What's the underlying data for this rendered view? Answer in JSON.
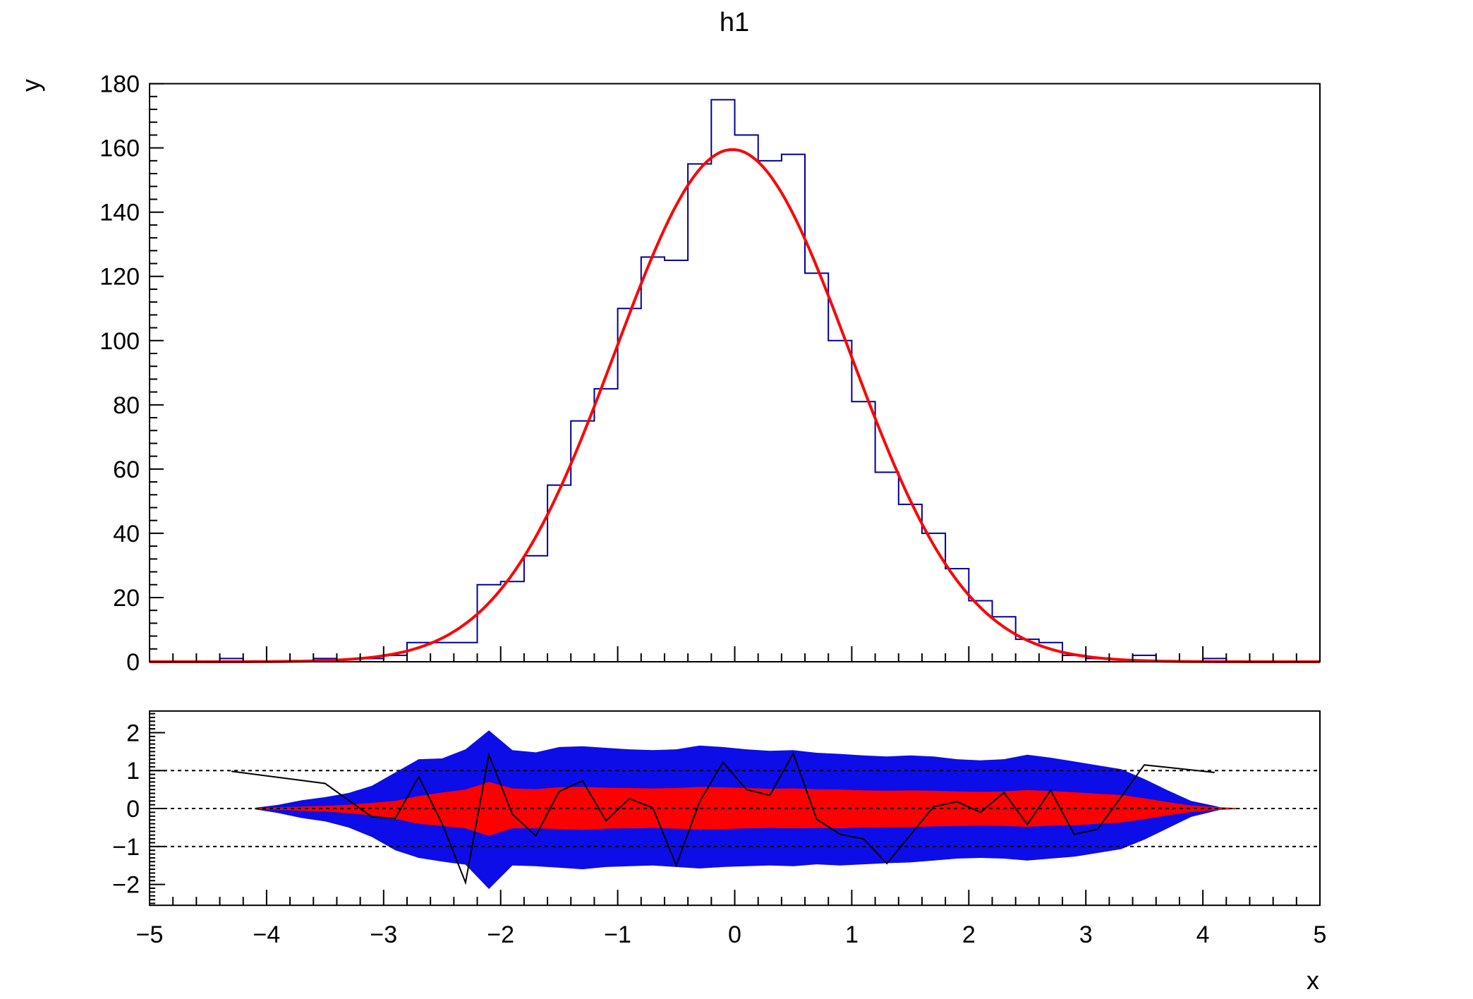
{
  "title": "h1",
  "colors": {
    "frame": "#000000",
    "histogram_line": "#000099",
    "fit_curve": "#ff0000",
    "band_2sigma": "#0d0de8",
    "band_1sigma": "#ff0000",
    "pull_line": "#000000",
    "reference_line": "#000000",
    "background": "#ffffff"
  },
  "axes": {
    "x": {
      "title": "x",
      "min": -5,
      "max": 5,
      "major_step": 1,
      "minor_step": 0.2,
      "tick_values": [
        -5,
        -4,
        -3,
        -2,
        -1,
        0,
        1,
        2,
        3,
        4,
        5
      ],
      "tick_labels": [
        "−5",
        "−4",
        "−3",
        "−2",
        "−1",
        "0",
        "1",
        "2",
        "3",
        "4",
        "5"
      ]
    },
    "y_top": {
      "title": "y",
      "min": 0,
      "max": 180,
      "major_step": 20,
      "minor_step": 4,
      "tick_values": [
        0,
        20,
        40,
        60,
        80,
        100,
        120,
        140,
        160,
        180
      ],
      "tick_labels": [
        "0",
        "20",
        "40",
        "60",
        "80",
        "100",
        "120",
        "140",
        "160",
        "180"
      ]
    },
    "y_bottom": {
      "min": -2.55,
      "max": 2.57,
      "major_step": 1,
      "minor_step": 0.1,
      "tick_values": [
        -2,
        -1,
        0,
        1,
        2
      ],
      "tick_labels": [
        "−2",
        "−1",
        "0",
        "1",
        "2"
      ]
    }
  },
  "chart_data": [
    {
      "type": "bar",
      "subtype": "step-histogram-with-fit",
      "title": "h1",
      "xlabel": "x",
      "ylabel": "y",
      "xlim": [
        -5,
        5
      ],
      "ylim": [
        0,
        180
      ],
      "grid": false,
      "legend": "none",
      "n_bins": 50,
      "bin_start": -5,
      "bin_width": 0.2,
      "values": [
        0,
        0,
        0,
        1,
        0,
        0,
        0,
        1,
        0,
        1,
        2,
        6,
        6,
        6,
        24,
        25,
        33,
        55,
        75,
        85,
        110,
        126,
        125,
        155,
        175,
        164,
        156,
        158,
        121,
        100,
        81,
        59,
        49,
        40,
        29,
        19,
        14,
        7,
        6,
        2,
        1,
        0,
        2,
        0,
        0,
        1,
        0,
        0,
        0,
        0
      ],
      "fit": {
        "shape": "gaussian",
        "amplitude": 159.5,
        "mean": -0.02,
        "sigma": 1.0
      }
    },
    {
      "type": "area",
      "subtype": "fit-residual-pulls-with-confidence-bands",
      "ylim": [
        -2.55,
        2.57
      ],
      "reference_lines": [
        1,
        0,
        -1
      ],
      "pulls": {
        "x": [
          -4.3,
          -3.5,
          -3.1,
          -2.9,
          -2.7,
          -2.5,
          -2.3,
          -2.1,
          -1.9,
          -1.7,
          -1.5,
          -1.3,
          -1.1,
          -0.9,
          -0.7,
          -0.5,
          -0.3,
          -0.1,
          0.1,
          0.3,
          0.5,
          0.7,
          0.9,
          1.1,
          1.3,
          1.5,
          1.7,
          1.9,
          2.1,
          2.3,
          2.5,
          2.7,
          2.9,
          3.1,
          3.5,
          4.1
        ],
        "y": [
          0.98,
          0.66,
          -0.22,
          -0.26,
          0.84,
          -0.4,
          -1.95,
          1.42,
          -0.15,
          -0.72,
          0.45,
          0.73,
          -0.32,
          0.26,
          0.02,
          -1.5,
          0.18,
          1.22,
          0.5,
          0.35,
          1.45,
          -0.28,
          -0.68,
          -0.8,
          -1.45,
          -0.7,
          0.05,
          0.18,
          -0.1,
          0.42,
          -0.42,
          0.48,
          -0.68,
          -0.55,
          1.15,
          0.95
        ]
      },
      "band_2sigma": {
        "x": [
          -4.1,
          -3.9,
          -3.7,
          -3.5,
          -3.3,
          -3.1,
          -2.9,
          -2.7,
          -2.5,
          -2.3,
          -2.1,
          -1.9,
          -1.7,
          -1.5,
          -1.3,
          -1.1,
          -0.9,
          -0.7,
          -0.5,
          -0.3,
          -0.1,
          0.1,
          0.3,
          0.5,
          0.7,
          0.9,
          1.1,
          1.3,
          1.5,
          1.7,
          1.9,
          2.1,
          2.3,
          2.5,
          2.7,
          2.9,
          3.1,
          3.3,
          3.5,
          3.7,
          3.9,
          4.1,
          4.18
        ],
        "upper": [
          0.02,
          0.1,
          0.22,
          0.3,
          0.41,
          0.6,
          0.95,
          1.3,
          1.32,
          1.56,
          2.06,
          1.54,
          1.48,
          1.62,
          1.64,
          1.6,
          1.56,
          1.54,
          1.56,
          1.66,
          1.62,
          1.56,
          1.52,
          1.54,
          1.47,
          1.44,
          1.4,
          1.37,
          1.4,
          1.37,
          1.3,
          1.27,
          1.3,
          1.42,
          1.34,
          1.24,
          1.14,
          1.04,
          0.78,
          0.48,
          0.2,
          0.07,
          0.01
        ],
        "lower": [
          -0.02,
          -0.12,
          -0.25,
          -0.34,
          -0.5,
          -0.75,
          -1.1,
          -1.3,
          -1.4,
          -1.48,
          -2.12,
          -1.5,
          -1.52,
          -1.56,
          -1.6,
          -1.54,
          -1.52,
          -1.5,
          -1.54,
          -1.58,
          -1.54,
          -1.52,
          -1.5,
          -1.52,
          -1.47,
          -1.5,
          -1.47,
          -1.44,
          -1.42,
          -1.37,
          -1.32,
          -1.3,
          -1.32,
          -1.37,
          -1.32,
          -1.27,
          -1.17,
          -1.07,
          -0.82,
          -0.52,
          -0.22,
          -0.07,
          -0.01
        ]
      },
      "band_1sigma": {
        "x": [
          -4.1,
          -3.9,
          -3.7,
          -3.5,
          -3.3,
          -3.1,
          -2.9,
          -2.7,
          -2.5,
          -2.3,
          -2.1,
          -1.9,
          -1.7,
          -1.5,
          -1.3,
          -1.1,
          -0.9,
          -0.7,
          -0.5,
          -0.3,
          -0.1,
          0.1,
          0.3,
          0.5,
          0.7,
          0.9,
          1.1,
          1.3,
          1.5,
          1.7,
          1.9,
          2.1,
          2.3,
          2.5,
          2.7,
          2.9,
          3.1,
          3.3,
          3.5,
          3.7,
          3.9,
          4.1,
          4.32
        ],
        "upper": [
          0.01,
          0.03,
          0.05,
          0.07,
          0.1,
          0.15,
          0.2,
          0.33,
          0.42,
          0.5,
          0.7,
          0.53,
          0.51,
          0.56,
          0.57,
          0.55,
          0.54,
          0.53,
          0.54,
          0.57,
          0.56,
          0.54,
          0.52,
          0.53,
          0.51,
          0.5,
          0.48,
          0.47,
          0.48,
          0.47,
          0.45,
          0.44,
          0.45,
          0.49,
          0.46,
          0.43,
          0.39,
          0.36,
          0.27,
          0.17,
          0.08,
          0.04,
          0.01
        ],
        "lower": [
          -0.01,
          -0.03,
          -0.06,
          -0.08,
          -0.12,
          -0.18,
          -0.27,
          -0.4,
          -0.46,
          -0.52,
          -0.72,
          -0.52,
          -0.52,
          -0.54,
          -0.56,
          -0.53,
          -0.52,
          -0.51,
          -0.53,
          -0.55,
          -0.54,
          -0.52,
          -0.51,
          -0.52,
          -0.51,
          -0.52,
          -0.5,
          -0.49,
          -0.49,
          -0.47,
          -0.46,
          -0.45,
          -0.46,
          -0.48,
          -0.45,
          -0.44,
          -0.4,
          -0.37,
          -0.28,
          -0.18,
          -0.09,
          -0.04,
          -0.01
        ]
      }
    }
  ]
}
